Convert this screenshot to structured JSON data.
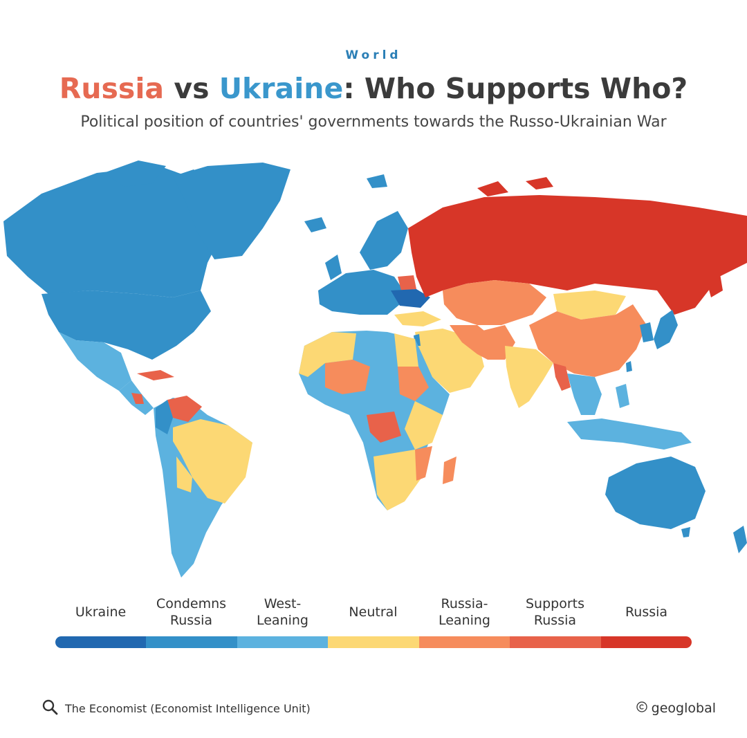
{
  "header": {
    "kicker": "World",
    "title_part1": "Russia",
    "title_part2": " vs ",
    "title_part3": "Ukraine",
    "title_part4": ": Who Supports Who?",
    "subtitle": "Political position of countries' governments towards the Russo-Ukrainian War"
  },
  "legend": {
    "categories": [
      {
        "label": "Ukraine",
        "color": "#2168b0"
      },
      {
        "label": "Condemns\nRussia",
        "color": "#3390c8"
      },
      {
        "label": "West-\nLeaning",
        "color": "#5cb2df"
      },
      {
        "label": "Neutral",
        "color": "#fcd874"
      },
      {
        "label": "Russia-\nLeaning",
        "color": "#f68c5c"
      },
      {
        "label": "Supports\nRussia",
        "color": "#e8624a"
      },
      {
        "label": "Russia",
        "color": "#d73628"
      }
    ]
  },
  "footer": {
    "source_icon": "search-icon",
    "source": "The Economist (Economist Intelligence Unit)",
    "credit_icon": "copyright-icon",
    "credit": "geoglobal"
  }
}
